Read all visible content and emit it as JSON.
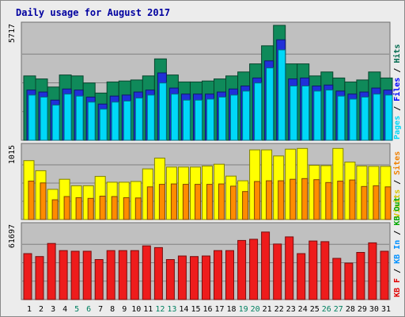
{
  "chart_data": {
    "type": "bar",
    "title": "Daily usage for August 2017",
    "categories": [
      "1",
      "2",
      "3",
      "4",
      "5",
      "6",
      "7",
      "8",
      "9",
      "10",
      "11",
      "12",
      "13",
      "14",
      "15",
      "16",
      "17",
      "18",
      "19",
      "20",
      "21",
      "22",
      "23",
      "24",
      "25",
      "26",
      "27",
      "28",
      "29",
      "30",
      "31"
    ],
    "weekend_days": [
      "5",
      "6",
      "12",
      "13",
      "19",
      "20",
      "26",
      "27"
    ],
    "panels": [
      {
        "ymax_label": "5717",
        "ymax": 5717,
        "legend": [
          {
            "text": "Pages",
            "color": "#00d8f8"
          },
          {
            "text": "Files",
            "color": "#0000ff"
          },
          {
            "text": "Hits",
            "color": "#006a4e"
          }
        ],
        "series": [
          {
            "name": "Hits",
            "color": "#0f8a5a",
            "values": [
              3200,
              3050,
              2650,
              3250,
              3200,
              2850,
              2350,
              2900,
              2950,
              3000,
              3200,
              4050,
              3250,
              2900,
              2900,
              2950,
              3050,
              3200,
              3400,
              3800,
              4700,
              5717,
              3800,
              3800,
              3200,
              3400,
              3100,
              2900,
              3000,
              3400,
              3100
            ]
          },
          {
            "name": "Files",
            "color": "#2030d8",
            "values": [
              2500,
              2400,
              2000,
              2550,
              2500,
              2150,
              1800,
              2200,
              2250,
              2400,
              2500,
              3350,
              2600,
              2300,
              2300,
              2300,
              2400,
              2550,
              2700,
              3100,
              3950,
              5000,
              3050,
              3100,
              2700,
              2750,
              2450,
              2300,
              2400,
              2600,
              2500
            ]
          },
          {
            "name": "Pages",
            "color": "#00d8f8",
            "values": [
              2250,
              2150,
              1750,
              2300,
              2200,
              1900,
              1550,
              1900,
              1950,
              2100,
              2250,
              2850,
              2300,
              2000,
              2000,
              2050,
              2150,
              2250,
              2450,
              2850,
              3600,
              4500,
              2700,
              2700,
              2450,
              2500,
              2200,
              2050,
              2150,
              2300,
              2250
            ]
          }
        ]
      },
      {
        "ymax_label": "1015",
        "ymax": 1015,
        "legend": [
          {
            "text": "Visits",
            "color": "#d8c400"
          },
          {
            "text": "Sites",
            "color": "#f08000"
          }
        ],
        "series": [
          {
            "name": "Visits",
            "color": "#ffff00",
            "values": [
              820,
              680,
              420,
              560,
              470,
              470,
              600,
              520,
              520,
              530,
              705,
              855,
              730,
              730,
              730,
              745,
              770,
              605,
              540,
              970,
              970,
              885,
              980,
              990,
              755,
              750,
              990,
              800,
              745,
              740,
              740
            ]
          },
          {
            "name": "Sites",
            "color": "#ff8c00",
            "values": [
              535,
              510,
              275,
              320,
              305,
              295,
              325,
              320,
              305,
              300,
              455,
              490,
              495,
              490,
              490,
              490,
              495,
              465,
              390,
              530,
              540,
              540,
              560,
              570,
              555,
              515,
              535,
              550,
              460,
              470,
              455
            ]
          }
        ]
      },
      {
        "ymax_label": "61697",
        "ymax": 61697,
        "legend": [
          {
            "text": "KB F",
            "color": "#e00000"
          },
          {
            "text": "KB In",
            "color": "#0090ff"
          },
          {
            "text": "KB Out",
            "color": "#00a800"
          }
        ],
        "series": [
          {
            "name": "KB F",
            "color": "#ee1c1c",
            "values": [
              38500,
              36000,
              47000,
              41000,
              40500,
              40500,
              33500,
              41000,
              41000,
              41000,
              45000,
              43500,
              33500,
              36500,
              36000,
              36500,
              41000,
              41000,
              49500,
              50500,
              56500,
              46500,
              52500,
              38500,
              49000,
              48500,
              34500,
              30500,
              39500,
              47500,
              40500
            ]
          }
        ]
      }
    ]
  }
}
